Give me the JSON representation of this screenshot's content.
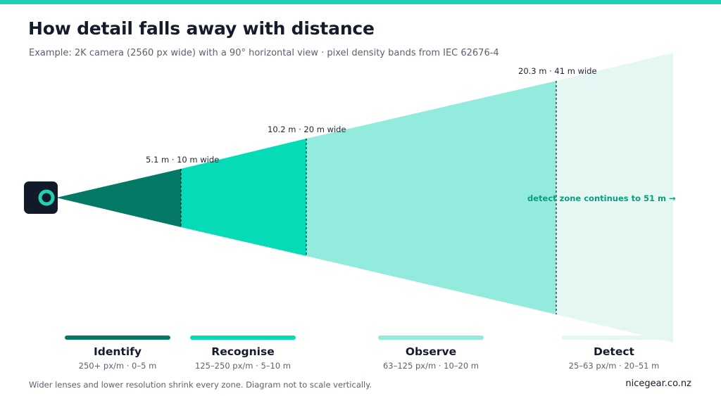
{
  "accent_color": "#1fd1b2",
  "header": {
    "title": "How detail falls away with distance",
    "subtitle": "Example: 2K camera (2560 px wide) with a 90° horizontal view · pixel density bands from IEC 62676-4"
  },
  "camera": {
    "icon": "camera-lens-icon",
    "color": "#121a29",
    "lens_color": "#1fd1b2"
  },
  "zones": [
    {
      "name": "Identify",
      "detail": "250+ px/m · 0–5 m",
      "color": "#047a66"
    },
    {
      "name": "Recognise",
      "detail": "125–250 px/m · 5–10 m",
      "color": "#06dbb8"
    },
    {
      "name": "Observe",
      "detail": "63–125 px/m · 10–20 m",
      "color": "#92ebdc"
    },
    {
      "name": "Detect",
      "detail": "25–63 px/m · 20–51 m",
      "color": "#e4f7f2"
    }
  ],
  "boundaries": [
    {
      "label": "5.1 m · 10 m wide"
    },
    {
      "label": "10.2 m · 20 m wide"
    },
    {
      "label": "20.3 m · 41 m wide"
    }
  ],
  "continuation_note": {
    "text": "detect zone continues to 51 m →",
    "color": "#0a9e7f"
  },
  "footer": {
    "note": "Wider lenses and lower resolution shrink every zone. Diagram not to scale vertically.",
    "brand": "nicegear.co.nz"
  }
}
